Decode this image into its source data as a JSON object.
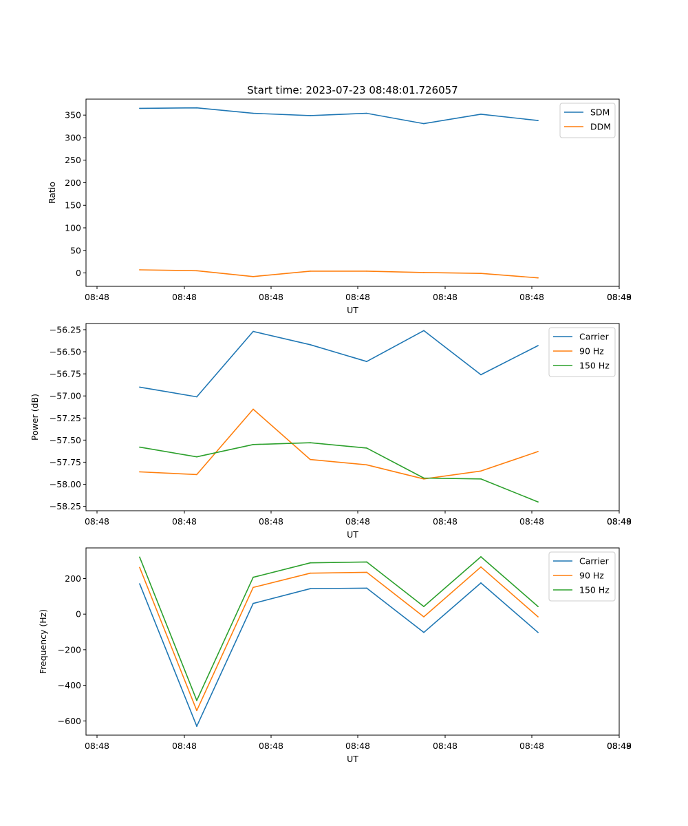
{
  "colors": {
    "blue": "#1f77b4",
    "orange": "#ff7f0e",
    "green": "#2ca02c"
  },
  "chart_data": [
    {
      "type": "line",
      "title": "Start time: 2023-07-23 08:48:01.726057",
      "xlabel": "UT",
      "ylabel": "Ratio",
      "x_tick_labels": [
        "08:48",
        "08:48",
        "08:48",
        "08:48",
        "08:48",
        "08:48",
        "08:48",
        "08:49"
      ],
      "y_ticks": [
        0,
        50,
        100,
        150,
        200,
        250,
        300,
        350
      ],
      "ylim": [
        -29.7,
        385.4
      ],
      "legend": "top-right",
      "series": [
        {
          "name": "SDM",
          "color": "#1f77b4",
          "values": [
            365,
            366,
            354,
            349,
            354,
            331,
            352,
            338
          ]
        },
        {
          "name": "DDM",
          "color": "#ff7f0e",
          "values": [
            7,
            5,
            -8,
            4,
            4,
            1,
            -1,
            -11
          ]
        }
      ]
    },
    {
      "type": "line",
      "title": "",
      "xlabel": "UT",
      "ylabel": "Power (dB)",
      "x_tick_labels": [
        "08:48",
        "08:48",
        "08:48",
        "08:48",
        "08:48",
        "08:48",
        "08:48",
        "08:49"
      ],
      "y_ticks": [
        -58.25,
        -58.0,
        -57.75,
        -57.5,
        -57.25,
        -57.0,
        -56.75,
        -56.5,
        -56.25
      ],
      "y_tick_labels": [
        "−58.25",
        "−58.00",
        "−57.75",
        "−57.50",
        "−57.25",
        "−57.00",
        "−56.75",
        "−56.50",
        "−56.25"
      ],
      "ylim": [
        -58.3,
        -56.18
      ],
      "legend": "top-right",
      "series": [
        {
          "name": "Carrier",
          "color": "#1f77b4",
          "values": [
            -56.9,
            -57.01,
            -56.27,
            -56.42,
            -56.61,
            -56.26,
            -56.76,
            -56.43
          ]
        },
        {
          "name": "90 Hz",
          "color": "#ff7f0e",
          "values": [
            -57.86,
            -57.89,
            -57.15,
            -57.72,
            -57.78,
            -57.94,
            -57.85,
            -57.63
          ]
        },
        {
          "name": "150 Hz",
          "color": "#2ca02c",
          "values": [
            -57.58,
            -57.69,
            -57.55,
            -57.53,
            -57.59,
            -57.93,
            -57.94,
            -58.2
          ]
        }
      ]
    },
    {
      "type": "line",
      "title": "",
      "xlabel": "UT",
      "ylabel": "Frequency (Hz)",
      "x_tick_labels": [
        "08:48",
        "08:48",
        "08:48",
        "08:48",
        "08:48",
        "08:48",
        "08:48",
        "08:49"
      ],
      "y_ticks": [
        -600,
        -400,
        -200,
        0,
        200
      ],
      "y_tick_labels": [
        "−600",
        "−400",
        "−200",
        "0",
        "200"
      ],
      "ylim": [
        -680,
        372
      ],
      "legend": "top-right",
      "series": [
        {
          "name": "Carrier",
          "color": "#1f77b4",
          "values": [
            170,
            -630,
            60,
            143,
            146,
            -103,
            175,
            -103
          ]
        },
        {
          "name": "90 Hz",
          "color": "#ff7f0e",
          "values": [
            262,
            -542,
            150,
            230,
            235,
            -15,
            265,
            -15
          ]
        },
        {
          "name": "150 Hz",
          "color": "#2ca02c",
          "values": [
            320,
            -485,
            207,
            288,
            293,
            43,
            322,
            43
          ]
        }
      ]
    }
  ]
}
